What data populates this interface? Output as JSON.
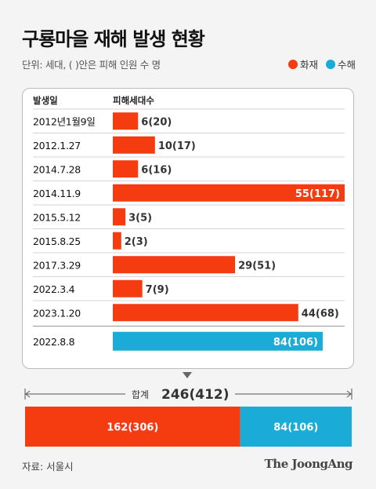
{
  "title": "구룡마을 재해 발생 현황",
  "unit_note": "단위: 세대, ( )안은 피해 인원 수 명",
  "legend": [
    {
      "label": "화재",
      "color": "#f53b10"
    },
    {
      "label": "수해",
      "color": "#1aabd6"
    }
  ],
  "source": "자료: 서울시",
  "brand": "The JoongAng",
  "chart_data": {
    "type": "bar",
    "orientation": "horizontal",
    "headers": {
      "category": "발생일",
      "value": "피해세대수"
    },
    "rows": [
      {
        "date": "2012년1월9일",
        "households": 6,
        "people": 20,
        "type": "화재",
        "label": "6(20)"
      },
      {
        "date": "2012.1.27",
        "households": 10,
        "people": 17,
        "type": "화재",
        "label": "10(17)"
      },
      {
        "date": "2014.7.28",
        "households": 6,
        "people": 16,
        "type": "화재",
        "label": "6(16)"
      },
      {
        "date": "2014.11.9",
        "households": 55,
        "people": 117,
        "type": "화재",
        "label": "55(117)"
      },
      {
        "date": "2015.5.12",
        "households": 3,
        "people": 5,
        "type": "화재",
        "label": "3(5)"
      },
      {
        "date": "2015.8.25",
        "households": 2,
        "people": 3,
        "type": "화재",
        "label": "2(3)"
      },
      {
        "date": "2017.3.29",
        "households": 29,
        "people": 51,
        "type": "화재",
        "label": "29(51)"
      },
      {
        "date": "2022.3.4",
        "households": 7,
        "people": 9,
        "type": "화재",
        "label": "7(9)"
      },
      {
        "date": "2023.1.20",
        "households": 44,
        "people": 68,
        "type": "화재",
        "label": "44(68)"
      },
      {
        "date": "2022.8.8",
        "households": 84,
        "people": 106,
        "type": "수해",
        "label": "84(106)"
      }
    ],
    "xlim": [
      0,
      55
    ],
    "total": {
      "label": "합계",
      "value": "246(412)",
      "households": 246,
      "segments": [
        {
          "type": "화재",
          "households": 162,
          "people": 306,
          "label": "162(306)"
        },
        {
          "type": "수해",
          "households": 84,
          "people": 106,
          "label": "84(106)"
        }
      ]
    }
  }
}
